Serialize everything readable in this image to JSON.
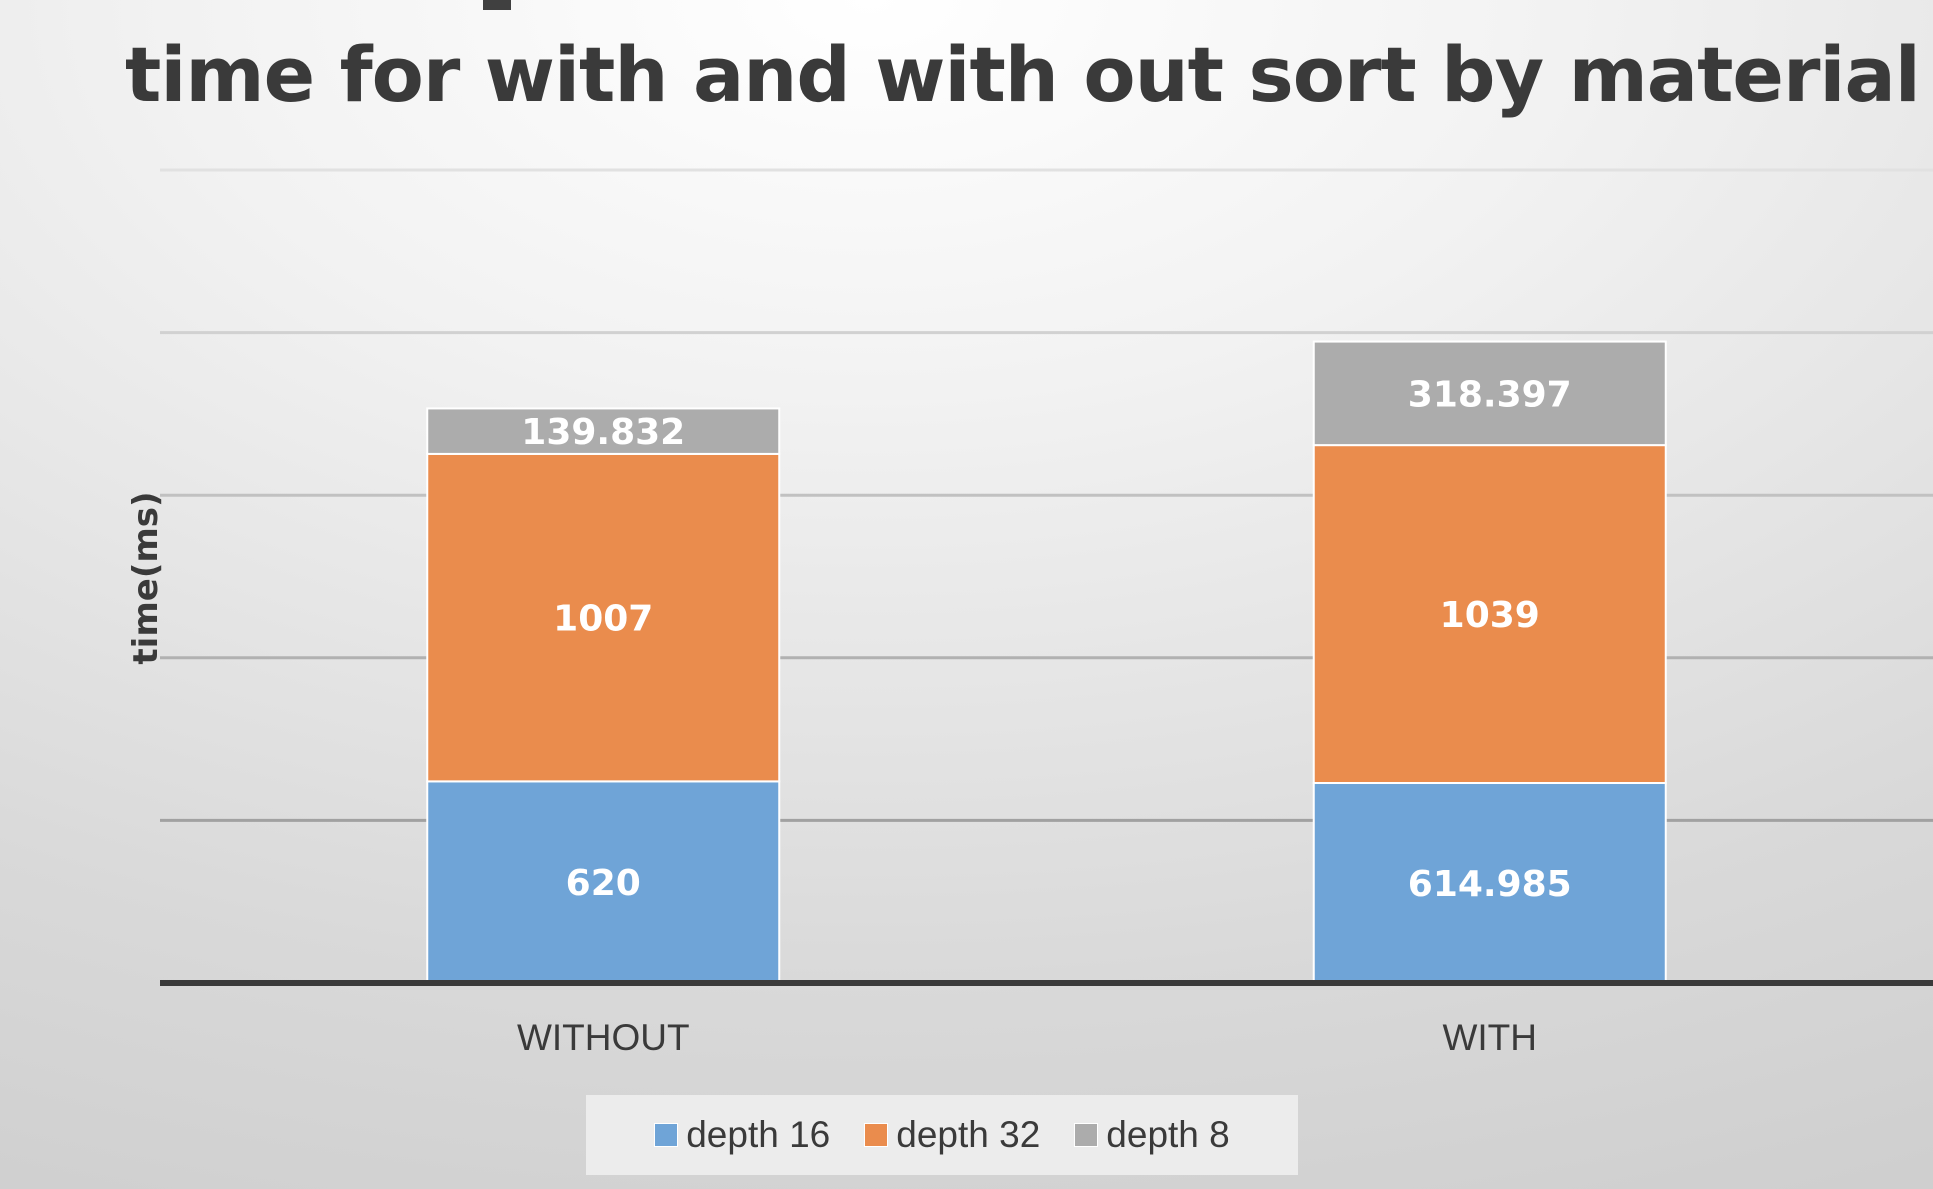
{
  "chart_data": {
    "type": "bar",
    "stacked": true,
    "title": "time for with and with out sort by material",
    "xlabel": "",
    "ylabel": "time(ms)",
    "categories": [
      "WITHOUT",
      "WITH"
    ],
    "series": [
      {
        "name": "depth 16",
        "values": [
          620,
          614.985
        ],
        "labels": [
          "620",
          "614.985"
        ],
        "color": "#6fa4d7"
      },
      {
        "name": "depth 32",
        "values": [
          1007,
          1039
        ],
        "labels": [
          "1007",
          "1039"
        ],
        "color": "#ea8c4d"
      },
      {
        "name": "depth 8",
        "values": [
          139.832,
          318.397
        ],
        "labels": [
          "139.832",
          "318.397"
        ],
        "color": "#acacac"
      }
    ],
    "ylim": [
      0,
      2500
    ],
    "grid": true,
    "legend": "bottom"
  }
}
